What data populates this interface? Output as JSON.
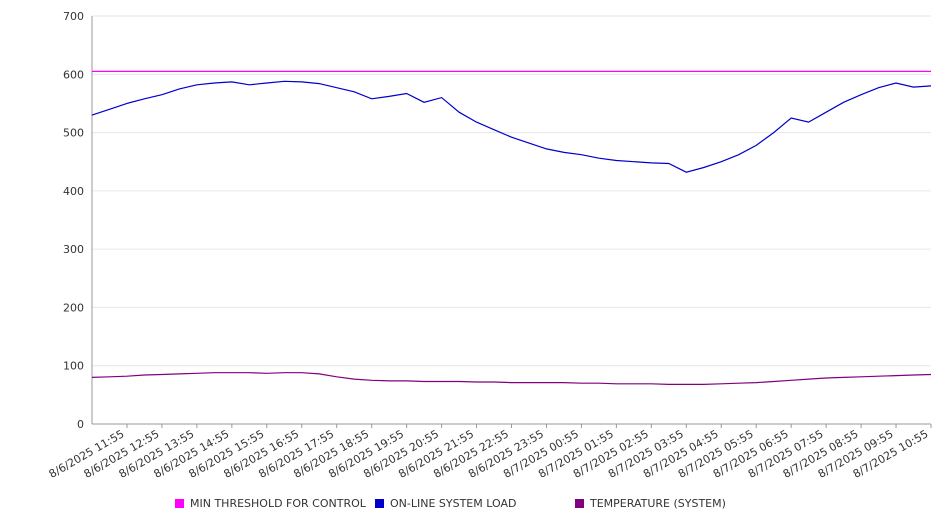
{
  "chart_data": {
    "type": "line",
    "title": "",
    "xlabel": "",
    "ylabel": "",
    "ylim": [
      0,
      700
    ],
    "yticks": [
      0,
      100,
      200,
      300,
      400,
      500,
      600,
      700
    ],
    "grid": true,
    "legend_position": "bottom",
    "x_tick_labels": [
      "8/6/2025 11:55",
      "8/6/2025 12:55",
      "8/6/2025 13:55",
      "8/6/2025 14:55",
      "8/6/2025 15:55",
      "8/6/2025 16:55",
      "8/6/2025 17:55",
      "8/6/2025 18:55",
      "8/6/2025 19:55",
      "8/6/2025 20:55",
      "8/6/2025 21:55",
      "8/6/2025 22:55",
      "8/6/2025 23:55",
      "8/7/2025 00:55",
      "8/7/2025 01:55",
      "8/7/2025 02:55",
      "8/7/2025 03:55",
      "8/7/2025 04:55",
      "8/7/2025 05:55",
      "8/7/2025 06:55",
      "8/7/2025 07:55",
      "8/7/2025 08:55",
      "8/7/2025 09:55",
      "8/7/2025 10:55"
    ],
    "x_hours": [
      0,
      0.5,
      1,
      1.5,
      2,
      2.5,
      3,
      3.5,
      4,
      4.5,
      5,
      5.5,
      6,
      6.5,
      7,
      7.5,
      8,
      8.5,
      9,
      9.5,
      10,
      10.5,
      11,
      11.5,
      12,
      12.5,
      13,
      13.5,
      14,
      14.5,
      15,
      15.5,
      16,
      16.5,
      17,
      17.5,
      18,
      18.5,
      19,
      19.5,
      20,
      20.5,
      21,
      21.5,
      22,
      22.5,
      23,
      23.5,
      24
    ],
    "series": [
      {
        "name": "MIN THRESHOLD FOR CONTROL",
        "color": "#ff00ff",
        "values": [
          605,
          605,
          605,
          605,
          605,
          605,
          605,
          605,
          605,
          605,
          605,
          605,
          605,
          605,
          605,
          605,
          605,
          605,
          605,
          605,
          605,
          605,
          605,
          605,
          605,
          605,
          605,
          605,
          605,
          605,
          605,
          605,
          605,
          605,
          605,
          605,
          605,
          605,
          605,
          605,
          605,
          605,
          605,
          605,
          605,
          605,
          605,
          605,
          605
        ]
      },
      {
        "name": "ON-LINE SYSTEM LOAD",
        "color": "#0000cc",
        "values": [
          530,
          540,
          550,
          558,
          565,
          575,
          582,
          585,
          587,
          582,
          585,
          588,
          587,
          584,
          577,
          570,
          558,
          562,
          567,
          552,
          560,
          535,
          518,
          505,
          492,
          482,
          472,
          466,
          462,
          456,
          452,
          450,
          448,
          447,
          432,
          440,
          450,
          462,
          478,
          500,
          525,
          518,
          535,
          552,
          565,
          577,
          585,
          578,
          580
        ]
      },
      {
        "name": "TEMPERATURE (SYSTEM)",
        "color": "#800080",
        "values": [
          80,
          81,
          82,
          84,
          85,
          86,
          87,
          88,
          88,
          88,
          87,
          88,
          88,
          86,
          81,
          77,
          75,
          74,
          74,
          73,
          73,
          73,
          72,
          72,
          71,
          71,
          71,
          71,
          70,
          70,
          69,
          69,
          69,
          68,
          68,
          68,
          69,
          70,
          71,
          73,
          75,
          77,
          79,
          80,
          81,
          82,
          83,
          84,
          85
        ]
      }
    ]
  }
}
